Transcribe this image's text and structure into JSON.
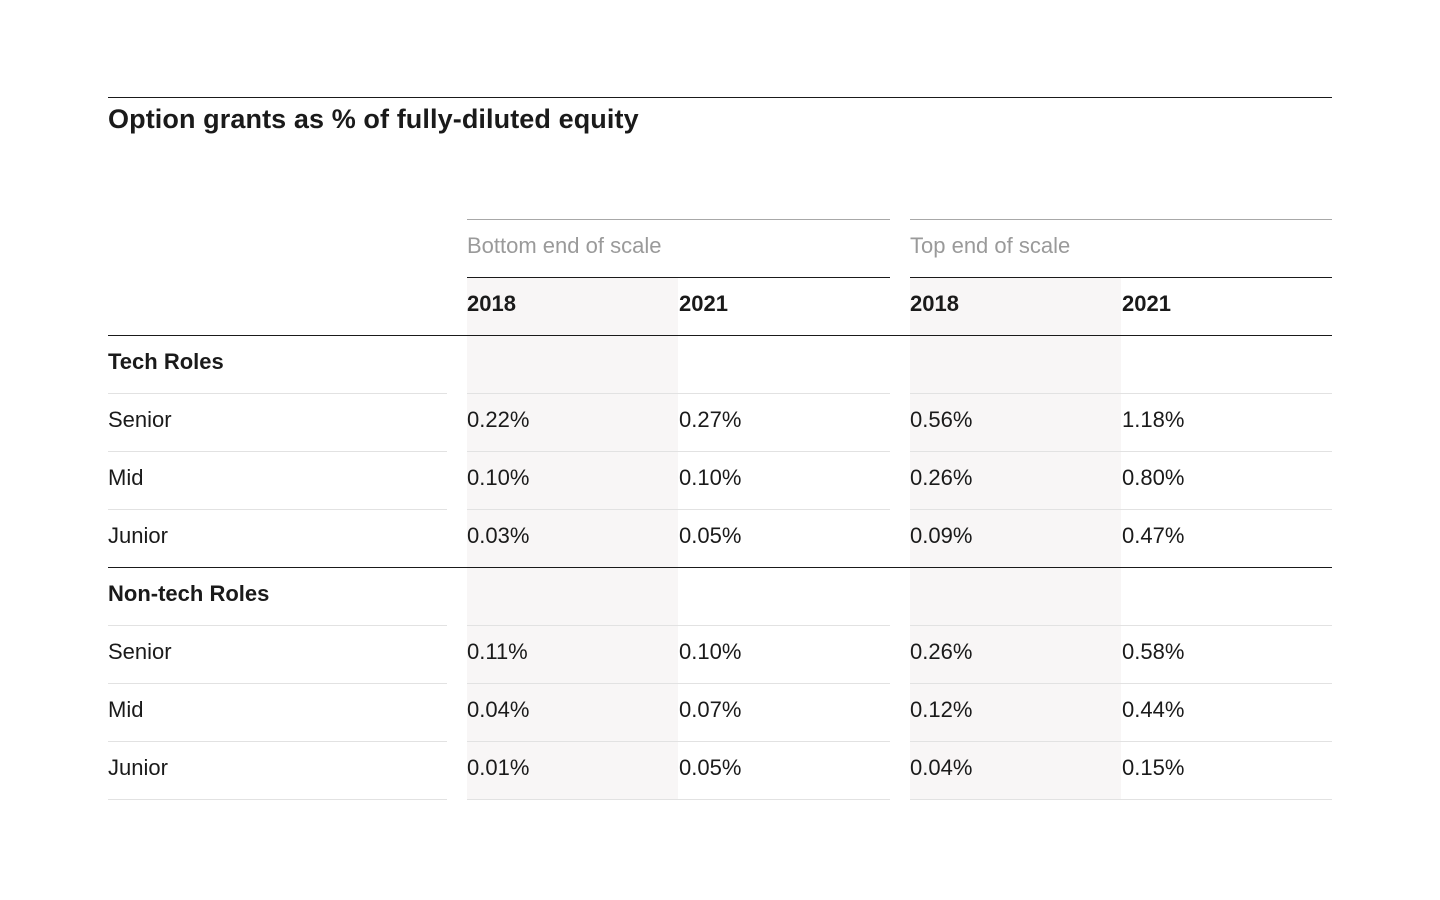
{
  "title": "Option grants as % of fully-diluted equity",
  "chart_data": {
    "type": "table",
    "title": "Option grants as % of fully-diluted equity",
    "column_groups": [
      {
        "label": "Bottom end of scale",
        "years": [
          "2018",
          "2021"
        ]
      },
      {
        "label": "Top end of scale",
        "years": [
          "2018",
          "2021"
        ]
      }
    ],
    "sections": [
      {
        "label": "Tech Roles",
        "rows": [
          {
            "label": "Senior",
            "values": [
              "0.22%",
              "0.27%",
              "0.56%",
              "1.18%"
            ]
          },
          {
            "label": "Mid",
            "values": [
              "0.10%",
              "0.10%",
              "0.26%",
              "0.80%"
            ]
          },
          {
            "label": "Junior",
            "values": [
              "0.03%",
              "0.05%",
              "0.09%",
              "0.47%"
            ]
          }
        ]
      },
      {
        "label": "Non-tech Roles",
        "rows": [
          {
            "label": "Senior",
            "values": [
              "0.11%",
              "0.10%",
              "0.26%",
              "0.58%"
            ]
          },
          {
            "label": "Mid",
            "values": [
              "0.04%",
              "0.07%",
              "0.12%",
              "0.44%"
            ]
          },
          {
            "label": "Junior",
            "values": [
              "0.01%",
              "0.05%",
              "0.04%",
              "0.15%"
            ]
          }
        ]
      }
    ]
  }
}
